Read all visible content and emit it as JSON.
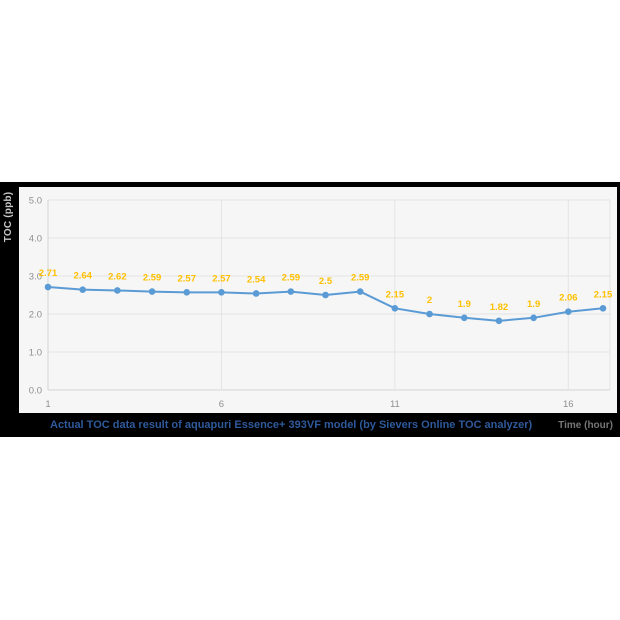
{
  "chart_data": {
    "type": "line",
    "title": "Actual TOC data result of aquapuri Essence+ 393VF model (by Sievers Online TOC analyzer)",
    "xlabel": "Time (hour)",
    "ylabel": "TOC (ppb)",
    "x": [
      1,
      2,
      3,
      4,
      5,
      6,
      7,
      8,
      9,
      10,
      11,
      12,
      13,
      14,
      15,
      16,
      17
    ],
    "values": [
      2.71,
      2.64,
      2.62,
      2.59,
      2.57,
      2.57,
      2.54,
      2.59,
      2.5,
      2.59,
      2.15,
      2,
      1.9,
      1.82,
      1.9,
      2.06,
      2.15
    ],
    "data_labels": [
      "2.71",
      "2.64",
      "2.62",
      "2.59",
      "2.57",
      "2.57",
      "2.54",
      "2.59",
      "2.5",
      "2.59",
      "2.15",
      "2",
      "1.9",
      "1.82",
      "1.9",
      "2.06",
      "2.15"
    ],
    "ylim": [
      0,
      5
    ],
    "yticks": [
      0,
      1,
      2,
      3,
      4,
      5
    ],
    "ytick_labels": [
      "0.0",
      "1.0",
      "2.0",
      "3.0",
      "4.0",
      "5.0"
    ],
    "xticks": [
      1,
      6,
      11,
      16
    ],
    "xtick_labels": [
      "1",
      "6",
      "11",
      "16"
    ],
    "grid": true,
    "legend": false,
    "colors": {
      "line": "#5B9BD5",
      "marker": "#5B9BD5",
      "data_label": "#FFC000",
      "gridline": "#e4e4e4",
      "axis_line": "#d4d4d4",
      "plot_background": "#f6f6f6",
      "band_background": "#000000",
      "tick_label": "#8f8f8f",
      "caption_text": "#2e5a9c",
      "y_title_text": "#c8c8c8",
      "x_title_text": "#767676"
    }
  }
}
